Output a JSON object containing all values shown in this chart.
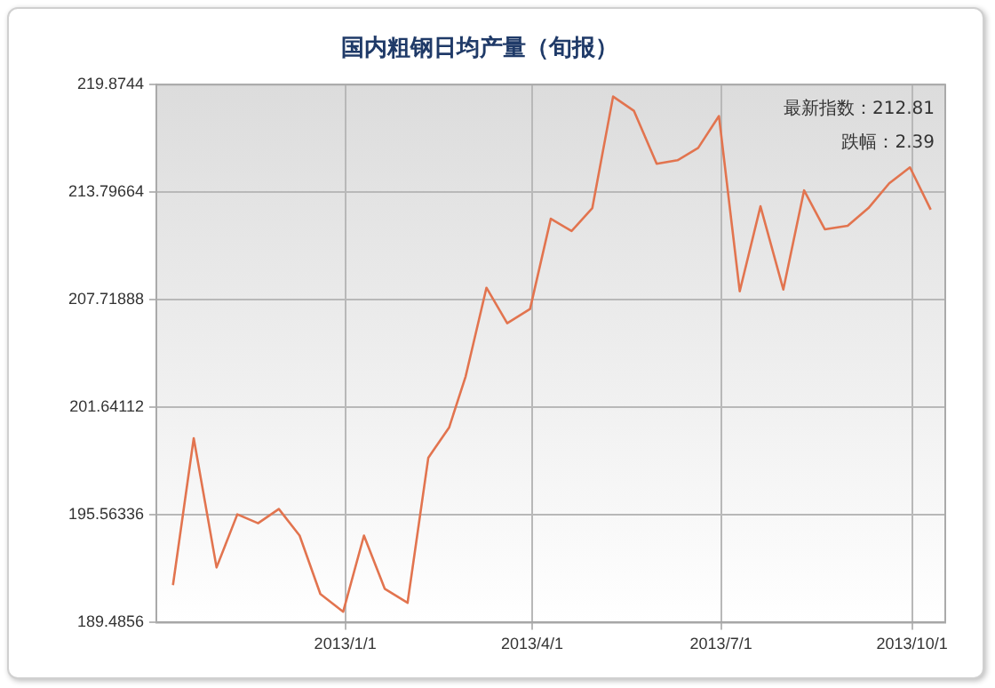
{
  "chart_data": {
    "type": "line",
    "title": "国内粗钢日均产量（旬报）",
    "x": [
      "2012-10-10",
      "2012-10-20",
      "2012-10-31",
      "2012-11-10",
      "2012-11-20",
      "2012-11-30",
      "2012-12-10",
      "2012-12-20",
      "2012-12-31",
      "2013-01-10",
      "2013-01-20",
      "2013-01-31",
      "2013-02-10",
      "2013-02-20",
      "2013-02-28",
      "2013-03-10",
      "2013-03-20",
      "2013-03-31",
      "2013-04-10",
      "2013-04-20",
      "2013-04-30",
      "2013-05-10",
      "2013-05-20",
      "2013-05-31",
      "2013-06-10",
      "2013-06-20",
      "2013-06-30",
      "2013-07-10",
      "2013-07-20",
      "2013-07-31",
      "2013-08-10",
      "2013-08-20",
      "2013-08-31",
      "2013-09-10",
      "2013-09-20",
      "2013-09-30",
      "2013-10-10"
    ],
    "series": [
      {
        "color": "#e2744f",
        "values": [
          191.6,
          199.9,
          192.6,
          195.6,
          195.1,
          195.9,
          194.4,
          191.1,
          190.1,
          194.4,
          191.4,
          190.6,
          198.8,
          200.5,
          203.4,
          208.4,
          206.4,
          207.2,
          212.3,
          211.6,
          212.9,
          219.2,
          218.4,
          215.4,
          215.6,
          216.3,
          218.1,
          208.2,
          213.0,
          208.3,
          213.9,
          211.7,
          211.9,
          212.9,
          214.3,
          215.2,
          212.81
        ]
      }
    ],
    "xlim": [
      "2012-10-02",
      "2013-10-17"
    ],
    "xticks": [
      {
        "value": "2013-01-01",
        "label": "2013/1/1"
      },
      {
        "value": "2013-04-01",
        "label": "2013/4/1"
      },
      {
        "value": "2013-07-01",
        "label": "2013/7/1"
      },
      {
        "value": "2013-10-01",
        "label": "2013/10/1"
      }
    ],
    "ylim": [
      189.4856,
      219.8744
    ],
    "yticks": [
      189.4856,
      195.56336,
      201.64112,
      207.71888,
      213.79664,
      219.8744
    ],
    "grid": true,
    "legend": false,
    "marker": "none",
    "line_style": "solid",
    "annotations": [
      "最新指数：212.81",
      "跌幅：2.39"
    ]
  }
}
